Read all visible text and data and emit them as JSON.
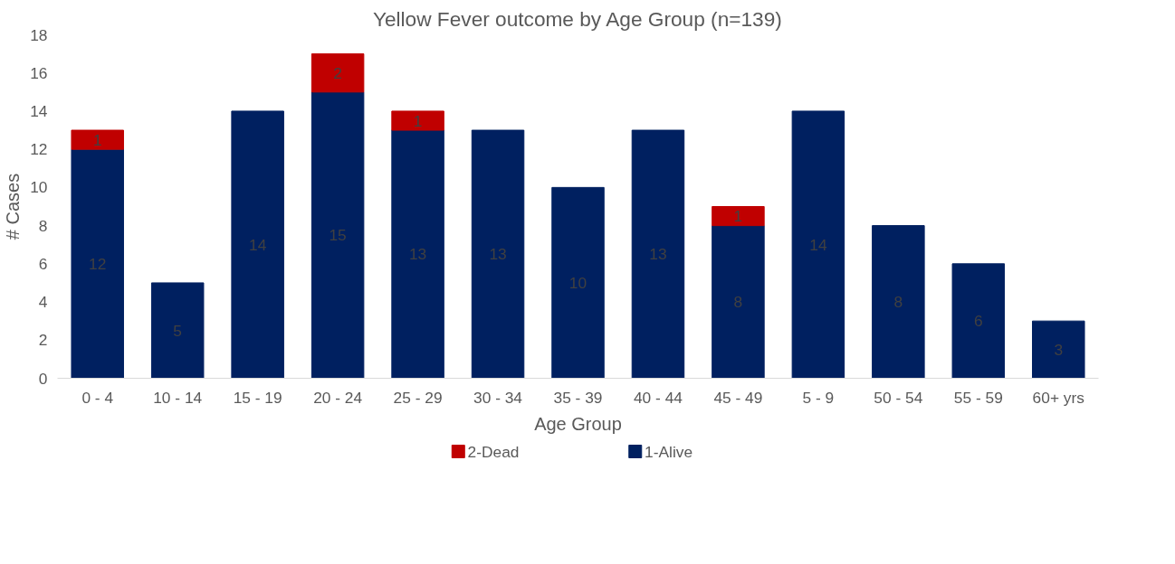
{
  "chart_data": {
    "type": "bar",
    "title": "Yellow Fever outcome by Age Group (n=139)",
    "xlabel": "Age Group",
    "ylabel": "# Cases",
    "categories": [
      "0 - 4",
      "10 - 14",
      "15 - 19",
      "20 - 24",
      "25 - 29",
      "30 - 34",
      "35 - 39",
      "40 - 44",
      "45 - 49",
      "5 - 9",
      "50 - 54",
      "55 - 59",
      "60+ yrs"
    ],
    "series": [
      {
        "name": "1-Alive",
        "color": "#002060",
        "values": [
          12,
          5,
          14,
          15,
          13,
          13,
          10,
          13,
          8,
          14,
          8,
          6,
          3
        ]
      },
      {
        "name": "2-Dead",
        "color": "#c00000",
        "values": [
          1,
          null,
          null,
          2,
          1,
          null,
          null,
          null,
          1,
          null,
          null,
          null,
          null
        ]
      }
    ],
    "stacked": true,
    "ylim": [
      0,
      18
    ],
    "yticks": [
      0,
      2,
      4,
      6,
      8,
      10,
      12,
      14,
      16,
      18
    ],
    "grid": false,
    "legend": "bottom",
    "data_labels": true
  }
}
